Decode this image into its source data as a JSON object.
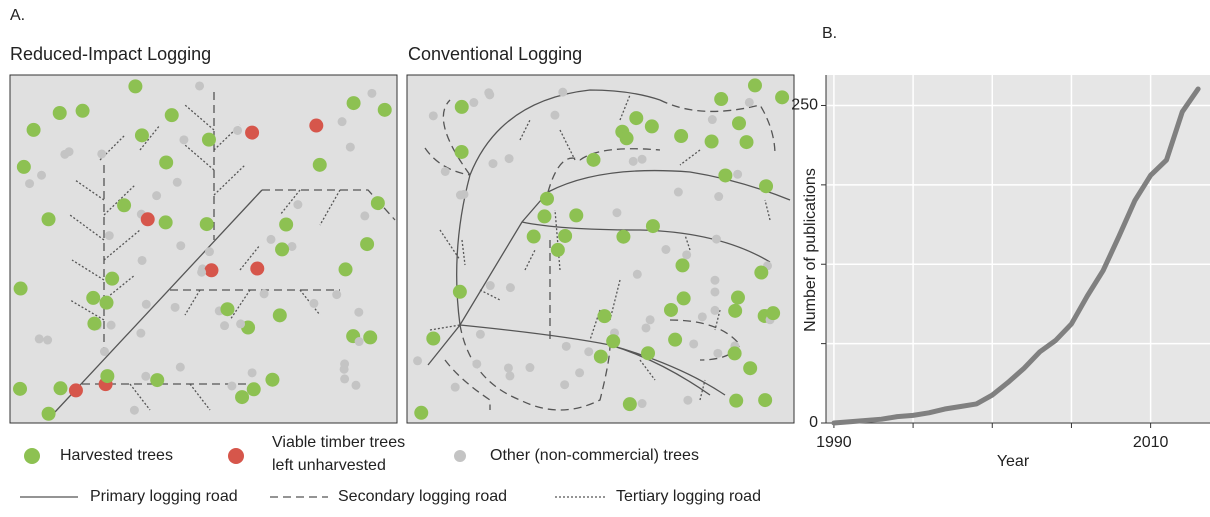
{
  "panel_a": {
    "label": "A.",
    "left_title": "Reduced-Impact Logging",
    "right_title": "Conventional Logging",
    "legend": {
      "harvested": "Harvested trees",
      "viable": "Viable timber trees",
      "viable_line2": "left unharvested",
      "other": "Other (non-commercial) trees",
      "primary": "Primary logging road",
      "secondary": "Secondary logging road",
      "tertiary": "Tertiary logging road"
    }
  },
  "chart_data": {
    "type": "line",
    "panel_label": "B.",
    "x_label": "Year",
    "y_label": "Number of publications",
    "x": [
      1990,
      1991,
      1992,
      1993,
      1994,
      1995,
      1996,
      1997,
      1998,
      1999,
      2000,
      2001,
      2002,
      2003,
      2004,
      2005,
      2006,
      2007,
      2008,
      2009,
      2010,
      2011,
      2012,
      2013
    ],
    "series": [
      {
        "color": "#808080",
        "values": [
          0,
          1,
          2,
          3,
          5,
          6,
          8,
          11,
          13,
          15,
          22,
          32,
          43,
          56,
          65,
          78,
          100,
          120,
          147,
          175,
          195,
          207,
          245,
          263
        ]
      }
    ],
    "xlim": [
      1989.5,
      2013.75
    ],
    "xticks": [
      1990,
      1995,
      2000,
      2005,
      2010
    ],
    "xtick_label_every": 4,
    "ylim": [
      0,
      274
    ],
    "yticks": [
      0,
      62.5,
      125,
      187.5,
      250
    ],
    "ytick_label_every": 4,
    "grid": true
  }
}
